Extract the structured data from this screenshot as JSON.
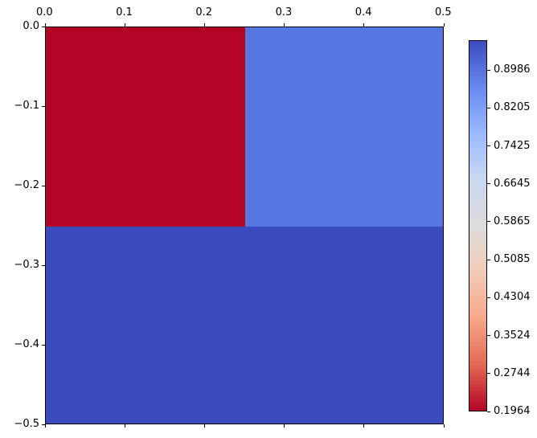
{
  "chart_data": {
    "type": "heatmap",
    "title": "",
    "xlabel": "",
    "ylabel": "",
    "xlim": [
      0.0,
      0.5
    ],
    "ylim": [
      -0.5,
      0.0
    ],
    "x_axis_position": "top",
    "x_ticks": [
      "0.0",
      "0.1",
      "0.2",
      "0.3",
      "0.4",
      "0.5"
    ],
    "y_ticks": [
      "0.0",
      "−0.1",
      "−0.2",
      "−0.3",
      "−0.4",
      "−0.5"
    ],
    "grid": false,
    "colormap": "coolwarm_r",
    "cells": [
      {
        "x0": 0.0,
        "x1": 0.25,
        "y0": 0.0,
        "y1": -0.25,
        "value": 0.1964,
        "color": "#b40426"
      },
      {
        "x0": 0.25,
        "x1": 0.5,
        "y0": 0.0,
        "y1": -0.25,
        "value": 0.85,
        "color": "#5677e0"
      },
      {
        "x0": 0.0,
        "x1": 0.5,
        "y0": -0.25,
        "y1": -0.5,
        "value": 0.96,
        "color": "#3b4cc0"
      }
    ],
    "colorbar": {
      "min": 0.1964,
      "max": 0.96,
      "ticks": [
        "0.1964",
        "0.2744",
        "0.3524",
        "0.4304",
        "0.5085",
        "0.5865",
        "0.6645",
        "0.7425",
        "0.8205",
        "0.8986"
      ],
      "tick_values": [
        0.1964,
        0.2744,
        0.3524,
        0.4304,
        0.5085,
        0.5865,
        0.6645,
        0.7425,
        0.8205,
        0.8986
      ],
      "gradient": [
        "#3b4cc0",
        "#6788ee",
        "#9abbff",
        "#c9d7f0",
        "#dddcdc",
        "#f2cbb7",
        "#f7a889",
        "#e26952",
        "#b40426"
      ]
    }
  }
}
